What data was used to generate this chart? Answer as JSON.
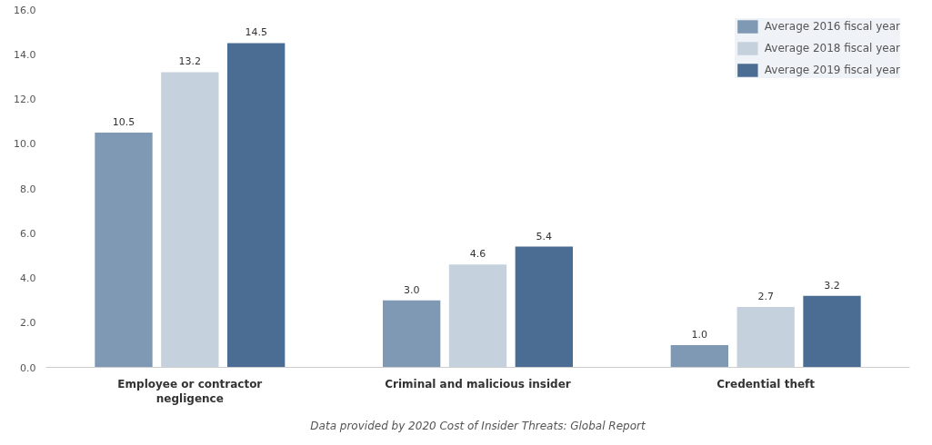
{
  "chart_data": {
    "type": "bar",
    "categories": [
      "Employee or contractor\nnegligence",
      "Criminal and malicious insider",
      "Credential theft"
    ],
    "series": [
      {
        "name": "Average 2016 fiscal year",
        "color": "#7f98b4",
        "values": [
          10.5,
          3.0,
          1.0
        ],
        "value_labels": [
          "10.5",
          "3.0",
          "1.0"
        ]
      },
      {
        "name": "Average 2018 fiscal year",
        "color": "#c6d1de",
        "values": [
          13.2,
          4.6,
          2.7
        ],
        "value_labels": [
          "13.2",
          "4.6",
          "2.7"
        ]
      },
      {
        "name": "Average 2019 fiscal year",
        "color": "#4b6d94",
        "values": [
          14.5,
          5.4,
          3.2
        ],
        "value_labels": [
          "14.5",
          "5.4",
          "3.2"
        ]
      }
    ],
    "ylim": [
      0,
      16
    ],
    "yticks": [
      {
        "value": 0,
        "label": "0.0"
      },
      {
        "value": 2,
        "label": "2.0"
      },
      {
        "value": 4,
        "label": "4.0"
      },
      {
        "value": 6,
        "label": "6.0"
      },
      {
        "value": 8,
        "label": "8.0"
      },
      {
        "value": 10,
        "label": "10.0"
      },
      {
        "value": 12,
        "label": "12.0"
      },
      {
        "value": 14,
        "label": "14.0"
      },
      {
        "value": 16,
        "label": "16.0"
      }
    ],
    "legend": "top right",
    "grid": false,
    "annotations": [
      "Data provided by 2020 Cost of Insider Threats: Global Report"
    ]
  }
}
